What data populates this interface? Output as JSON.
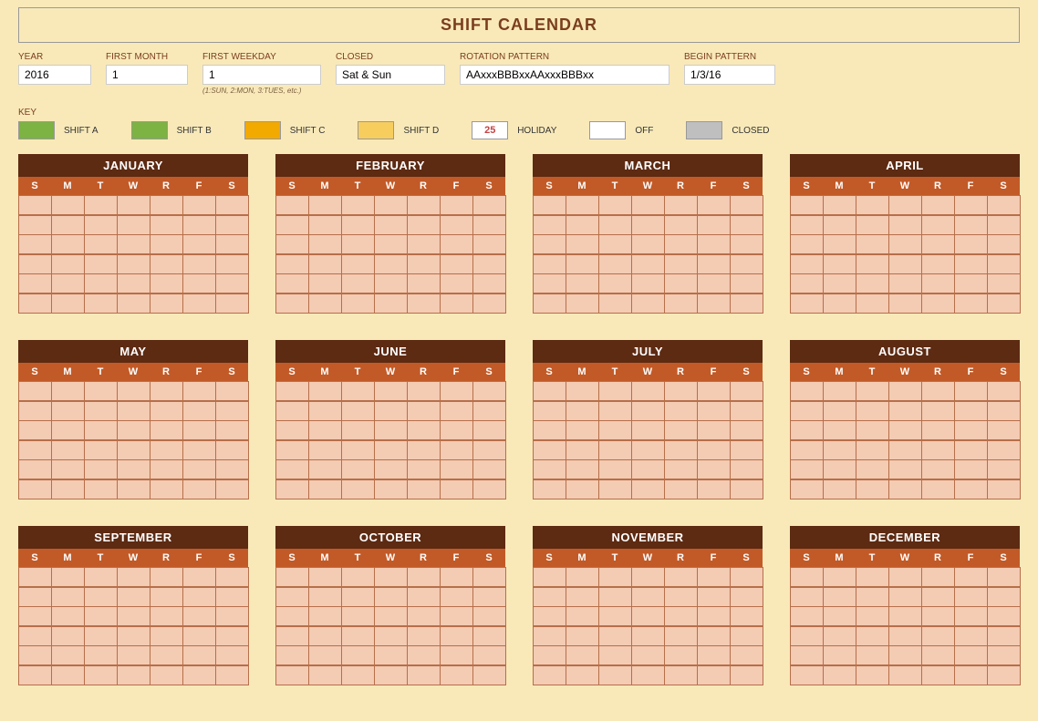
{
  "title": "SHIFT CALENDAR",
  "colors": {
    "page_bg": "#f9e9b9",
    "title_text": "#7a3e1f",
    "label_text": "#7a3e1f",
    "input_bg": "#ffffff",
    "month_header_bg": "#5d2a12",
    "weekday_row_bg": "#c25a27",
    "day_cell_bg": "#f4cbb3",
    "day_cell_border": "#b76f4a"
  },
  "config": {
    "year": {
      "label": "YEAR",
      "value": "2016"
    },
    "first_month": {
      "label": "FIRST MONTH",
      "value": "1"
    },
    "first_weekday": {
      "label": "FIRST WEEKDAY",
      "value": "1",
      "hint": "(1:SUN, 2:MON, 3:TUES, etc.)"
    },
    "closed": {
      "label": "CLOSED",
      "value": "Sat & Sun"
    },
    "rotation_pattern": {
      "label": "ROTATION PATTERN",
      "value": "AAxxxBBBxxAAxxxBBBxx"
    },
    "begin_pattern": {
      "label": "BEGIN PATTERN",
      "value": "1/3/16"
    }
  },
  "key": {
    "label": "KEY",
    "items": [
      {
        "color": "#7cb342",
        "text": "SHIFT A"
      },
      {
        "color": "#7cb342",
        "text": "SHIFT B"
      },
      {
        "color": "#f2a900",
        "text": "SHIFT C"
      },
      {
        "color": "#f7cd5e",
        "text": "SHIFT D"
      },
      {
        "color": "#ffffff",
        "text": "HOLIDAY",
        "content": "25",
        "content_color": "#c44444"
      },
      {
        "color": "#ffffff",
        "text": "OFF"
      },
      {
        "color": "#bfbfbf",
        "text": "CLOSED"
      }
    ]
  },
  "calendar": {
    "weekdays": [
      "S",
      "M",
      "T",
      "W",
      "R",
      "F",
      "S"
    ],
    "months": [
      "JANUARY",
      "FEBRUARY",
      "MARCH",
      "APRIL",
      "MAY",
      "JUNE",
      "JULY",
      "AUGUST",
      "SEPTEMBER",
      "OCTOBER",
      "NOVEMBER",
      "DECEMBER"
    ],
    "rows_per_month": 6
  }
}
